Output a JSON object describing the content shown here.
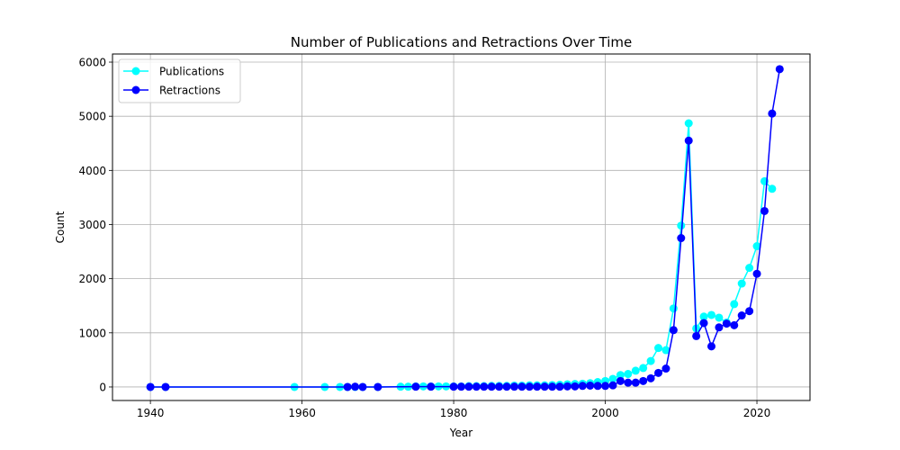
{
  "chart_data": {
    "type": "line",
    "title": "Number of Publications and Retractions Over Time",
    "xlabel": "Year",
    "ylabel": "Count",
    "xlim": [
      1935,
      2027
    ],
    "ylim": [
      -250,
      6150
    ],
    "xticks": [
      1940,
      1960,
      1980,
      2000,
      2020
    ],
    "yticks": [
      0,
      1000,
      2000,
      3000,
      4000,
      5000,
      6000
    ],
    "grid": true,
    "legend_position": "top-left",
    "series": [
      {
        "name": "Publications",
        "color": "#00ffff",
        "x": [
          1940,
          1942,
          1959,
          1963,
          1965,
          1966,
          1967,
          1968,
          1970,
          1973,
          1974,
          1975,
          1976,
          1977,
          1978,
          1979,
          1980,
          1981,
          1982,
          1983,
          1984,
          1985,
          1986,
          1987,
          1988,
          1989,
          1990,
          1991,
          1992,
          1993,
          1994,
          1995,
          1996,
          1997,
          1998,
          1999,
          2000,
          2001,
          2002,
          2003,
          2004,
          2005,
          2006,
          2007,
          2008,
          2009,
          2010,
          2011,
          2012,
          2013,
          2014,
          2015,
          2016,
          2017,
          2018,
          2019,
          2020,
          2021,
          2022
        ],
        "y": [
          0,
          0,
          0,
          0,
          0,
          0,
          0,
          0,
          0,
          5,
          5,
          10,
          10,
          10,
          10,
          10,
          10,
          10,
          15,
          15,
          15,
          20,
          20,
          20,
          25,
          25,
          30,
          30,
          30,
          35,
          40,
          50,
          55,
          60,
          70,
          90,
          110,
          150,
          220,
          240,
          300,
          350,
          480,
          720,
          680,
          1450,
          2980,
          4870,
          1080,
          1300,
          1330,
          1280,
          1190,
          1530,
          1910,
          2200,
          2600,
          3800,
          3660
        ]
      },
      {
        "name": "Retractions",
        "color": "#0000ff",
        "x": [
          1940,
          1942,
          1966,
          1967,
          1968,
          1970,
          1975,
          1977,
          1980,
          1981,
          1982,
          1983,
          1984,
          1985,
          1986,
          1987,
          1988,
          1989,
          1990,
          1991,
          1992,
          1993,
          1994,
          1995,
          1996,
          1997,
          1998,
          1999,
          2000,
          2001,
          2002,
          2003,
          2004,
          2005,
          2006,
          2007,
          2008,
          2009,
          2010,
          2011,
          2012,
          2013,
          2014,
          2015,
          2016,
          2017,
          2018,
          2019,
          2020,
          2021,
          2022,
          2023
        ],
        "y": [
          0,
          0,
          0,
          5,
          0,
          0,
          5,
          5,
          5,
          5,
          5,
          5,
          5,
          5,
          5,
          5,
          5,
          5,
          5,
          5,
          5,
          5,
          5,
          10,
          10,
          20,
          25,
          20,
          20,
          30,
          110,
          80,
          80,
          110,
          160,
          260,
          340,
          1050,
          2750,
          4550,
          940,
          1180,
          750,
          1100,
          1170,
          1140,
          1320,
          1400,
          2090,
          3250,
          5050,
          5870
        ]
      }
    ]
  }
}
